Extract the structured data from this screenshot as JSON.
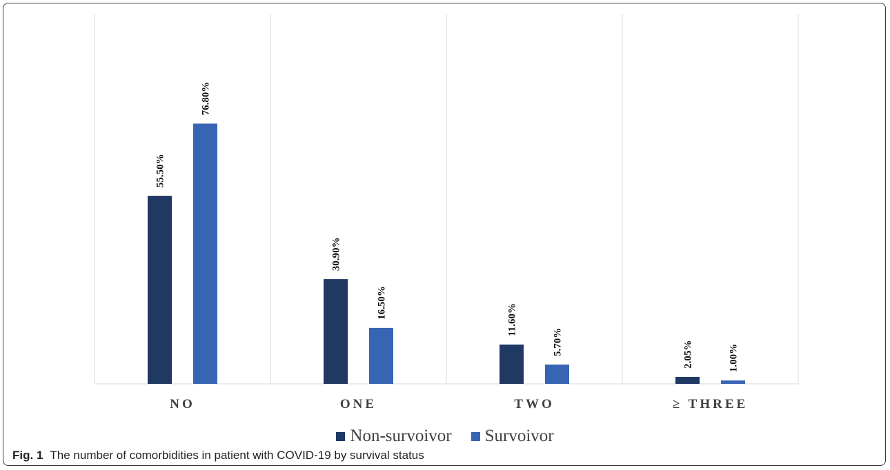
{
  "chart_data": {
    "type": "bar",
    "categories": [
      "NO",
      "ONE",
      "TWO",
      "≥ THREE"
    ],
    "series": [
      {
        "name": "Non-survoivor",
        "values": [
          55.5,
          30.9,
          11.6,
          2.05
        ],
        "labels": [
          "55.50%",
          "30.90%",
          "11.60%",
          "2.05%"
        ],
        "color": "#1f3864"
      },
      {
        "name": "Survoivor",
        "values": [
          76.8,
          16.5,
          5.7,
          1.0
        ],
        "labels": [
          "76.80%",
          "16.50%",
          "5.70%",
          "1.00%"
        ],
        "color": "#3864b4"
      }
    ],
    "ylim": [
      0,
      100
    ],
    "grid": "vertical separators between categories",
    "legend": "bottom-center"
  },
  "caption": {
    "label": "Fig. 1",
    "text": "The number of comorbidities in patient with COVID-19 by survival status"
  }
}
